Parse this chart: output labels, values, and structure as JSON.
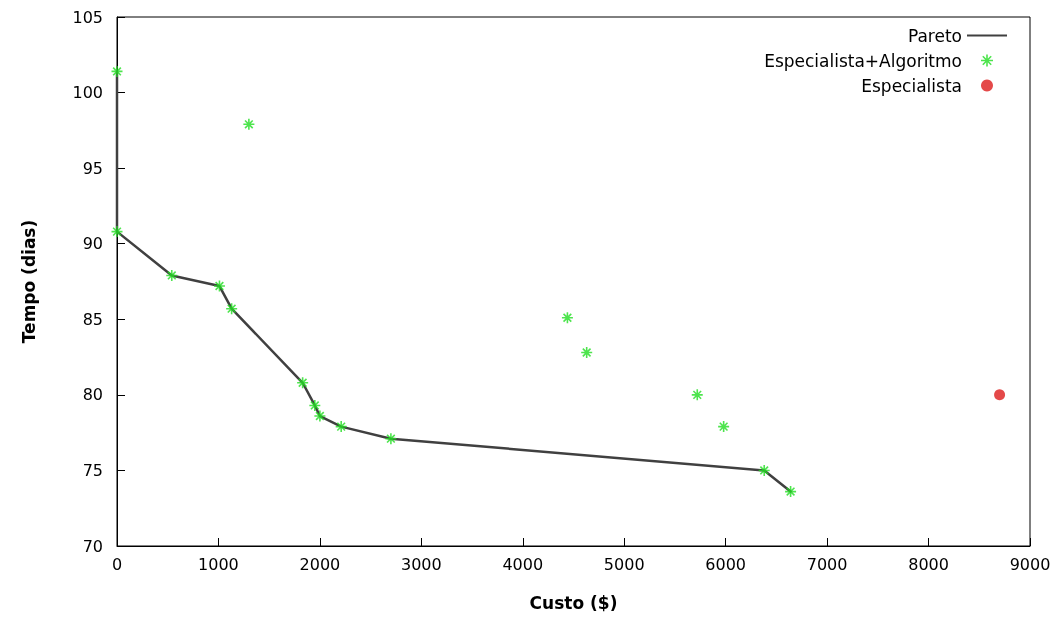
{
  "chart_data": {
    "type": "scatter",
    "xlabel": "Custo ($)",
    "ylabel": "Tempo (dias)",
    "xlim": [
      0,
      9000
    ],
    "xticks": [
      0,
      1000,
      2000,
      3000,
      4000,
      5000,
      6000,
      7000,
      8000,
      9000
    ],
    "ylim": [
      70,
      105
    ],
    "yticks": [
      70,
      75,
      80,
      85,
      90,
      95,
      100,
      105
    ],
    "grid": false,
    "legend": "top right",
    "series": [
      {
        "name": "Pareto",
        "type": "line",
        "color": "#404040",
        "marker": "none",
        "line_style": "solid",
        "x": [
          0,
          0,
          540,
          1010,
          1130,
          1830,
          1950,
          2000,
          2210,
          2700,
          6380,
          6640
        ],
        "values": [
          101.4,
          90.8,
          87.9,
          87.2,
          85.7,
          80.8,
          79.3,
          78.6,
          77.9,
          77.1,
          75.0,
          73.6
        ]
      },
      {
        "name": "Especialista+Algoritmo",
        "color": "#22dd22",
        "marker": "cross",
        "x": [
          0,
          1300,
          0,
          540,
          1010,
          1130,
          1830,
          1950,
          2000,
          2210,
          2700,
          4440,
          4630,
          5720,
          5980,
          6380,
          6640
        ],
        "values": [
          101.4,
          97.9,
          90.8,
          87.9,
          87.2,
          85.7,
          80.8,
          79.3,
          78.6,
          77.9,
          77.1,
          85.1,
          82.8,
          80.0,
          77.9,
          75.0,
          73.6
        ]
      },
      {
        "name": "Especialista",
        "color": "#dd1c1c",
        "marker": "circle",
        "x": [
          8700
        ],
        "values": [
          80.0
        ]
      }
    ]
  }
}
